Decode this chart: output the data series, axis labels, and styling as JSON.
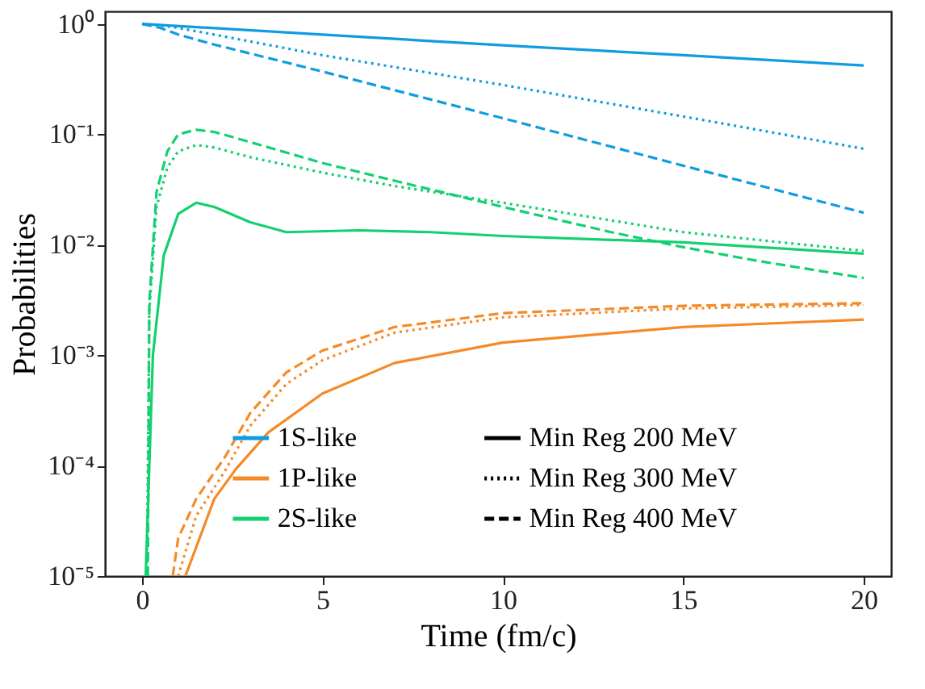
{
  "chart_data": {
    "type": "line",
    "xlabel": "Time (fm/c)",
    "ylabel": "Probabilities",
    "log": "y",
    "xlim": [
      -1.03,
      20.76
    ],
    "xticks": [
      0,
      5,
      10,
      15,
      20
    ],
    "ylim": [
      1e-05,
      1.3
    ],
    "yticks": [
      {
        "value": 1e-05,
        "label": "10⁻⁵"
      },
      {
        "value": 0.0001,
        "label": "10⁻⁴"
      },
      {
        "value": 0.001,
        "label": "10⁻³"
      },
      {
        "value": 0.01,
        "label": "10⁻²"
      },
      {
        "value": 0.1,
        "label": "10⁻¹"
      },
      {
        "value": 1,
        "label": "10⁰"
      }
    ],
    "grid": false,
    "legend": "bottom",
    "marker": "none",
    "annotations": [
      "Min Reg 200 MeV",
      "Min Reg 300 MeV",
      "Min Reg 400 MeV"
    ],
    "series": [
      {
        "name": "1S-like",
        "color": "#0f9ddf",
        "line_style": "solid",
        "x": [
          0,
          5,
          10,
          15,
          20
        ],
        "values": [
          1,
          0.8,
          0.64,
          0.52,
          0.42
        ]
      },
      {
        "color": "#0f9ddf",
        "line_style": "dotted",
        "x": [
          0,
          0.5,
          1,
          2,
          5,
          10,
          15,
          20
        ],
        "values": [
          1,
          0.97,
          0.92,
          0.8,
          0.52,
          0.28,
          0.145,
          0.074
        ]
      },
      {
        "color": "#0f9ddf",
        "line_style": "dashed",
        "x": [
          0,
          0.5,
          1,
          2,
          5,
          10,
          15,
          20
        ],
        "values": [
          1,
          0.92,
          0.8,
          0.65,
          0.37,
          0.14,
          0.052,
          0.0195
        ]
      },
      {
        "name": "1P-like",
        "color": "#f58a27",
        "line_style": "solid",
        "x": [
          1.2,
          2,
          2.6,
          3.5,
          5,
          7,
          10,
          15,
          20
        ],
        "values": [
          1e-05,
          5e-05,
          9.3e-05,
          0.0002,
          0.00045,
          0.00085,
          0.0013,
          0.0018,
          0.0021
        ]
      },
      {
        "color": "#f58a27",
        "line_style": "dotted",
        "x": [
          1,
          1.5,
          2.3,
          3,
          4,
          5,
          7,
          10,
          15,
          20
        ],
        "values": [
          1e-05,
          3.5e-05,
          9e-05,
          0.00023,
          0.00055,
          0.0009,
          0.0016,
          0.0022,
          0.00265,
          0.00285
        ]
      },
      {
        "color": "#f58a27",
        "line_style": "dashed",
        "x": [
          0.85,
          1,
          1.5,
          2.3,
          3,
          4,
          5,
          7,
          10,
          15,
          20
        ],
        "values": [
          1e-05,
          2.2e-05,
          5e-05,
          0.00012,
          0.0003,
          0.0007,
          0.0011,
          0.0018,
          0.0024,
          0.0028,
          0.00295
        ]
      },
      {
        "name": "2S-like",
        "color": "#13d070",
        "line_style": "solid",
        "x": [
          0.1,
          0.3,
          0.6,
          1,
          1.5,
          2,
          3,
          4,
          6,
          8,
          10,
          15,
          20
        ],
        "values": [
          1e-05,
          0.001,
          0.008,
          0.019,
          0.024,
          0.022,
          0.016,
          0.013,
          0.0135,
          0.013,
          0.012,
          0.0105,
          0.0083
        ]
      },
      {
        "color": "#13d070",
        "line_style": "dotted",
        "x": [
          0.13,
          0.2,
          0.4,
          0.7,
          1,
          1.5,
          2,
          3,
          5,
          7,
          10,
          15,
          20
        ],
        "values": [
          1e-05,
          0.0025,
          0.022,
          0.05,
          0.07,
          0.08,
          0.076,
          0.062,
          0.045,
          0.034,
          0.024,
          0.013,
          0.0088
        ]
      },
      {
        "color": "#13d070",
        "line_style": "dashed",
        "x": [
          0.16,
          0.2,
          0.4,
          0.7,
          1,
          1.5,
          2,
          3,
          5,
          7,
          10,
          13,
          15,
          17,
          20
        ],
        "values": [
          1e-05,
          0.003,
          0.03,
          0.07,
          0.1,
          0.11,
          0.105,
          0.085,
          0.055,
          0.038,
          0.022,
          0.013,
          0.0095,
          0.0072,
          0.005
        ]
      }
    ]
  }
}
